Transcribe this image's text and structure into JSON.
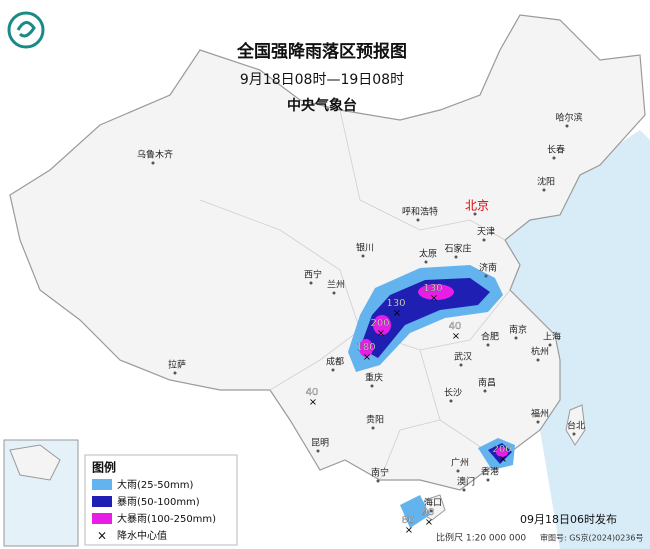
{
  "header": {
    "title": "全国强降雨落区预报图",
    "subtitle": "9月18日08时—19日08时",
    "issuer": "中央气象台"
  },
  "cities": [
    "乌鲁木齐",
    "哈尔滨",
    "长春",
    "沈阳",
    "呼和浩特",
    "北京",
    "天津",
    "银川",
    "太原",
    "石家庄",
    "济南",
    "西宁",
    "兰州",
    "南京",
    "合肥",
    "上海",
    "成都",
    "武汉",
    "杭州",
    "重庆",
    "南昌",
    "长沙",
    "拉萨",
    "贵阳",
    "福州",
    "台北",
    "昆明",
    "南宁",
    "广州",
    "香港",
    "澳门",
    "海口"
  ],
  "rain_centers": [
    130,
    130,
    200,
    180,
    40,
    40,
    200,
    90,
    80
  ],
  "legend": {
    "title": "图例",
    "items": [
      "大雨(25-50mm)",
      "暴雨(50-100mm)",
      "大暴雨(100-250mm)",
      "降水中心值"
    ]
  },
  "footer": {
    "release": "09月18日06时发布",
    "scale": "比例尺 1:20 000 000",
    "approval": "审图号: GS京(2024)0236号"
  }
}
